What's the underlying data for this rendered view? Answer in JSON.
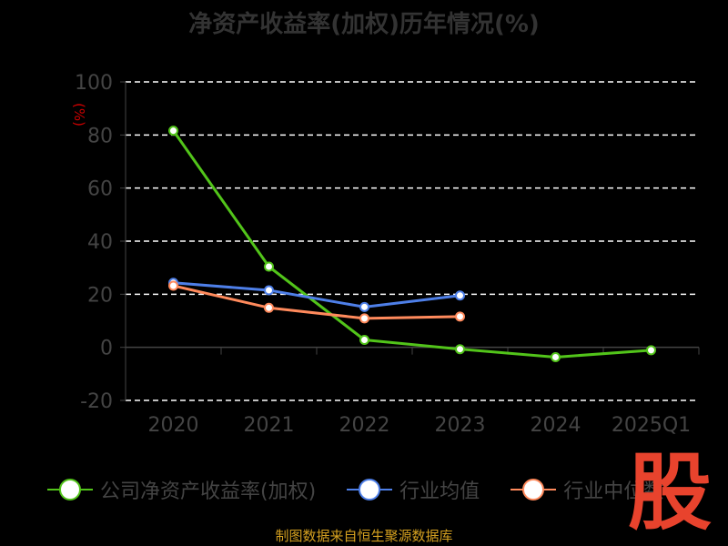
{
  "title": "净资产收益率(加权)历年情况(%)",
  "source": "制图数据来自恒生聚源数据库",
  "logo_text": "股",
  "colors": {
    "background": "#000000",
    "axis": "#444444",
    "grid": "#ffffff",
    "company": "#52c41a",
    "industry_avg": "#4e7fe8",
    "industry_median": "#ff8a5c",
    "unit": "#cc0000"
  },
  "chart_data": {
    "type": "line",
    "title": "净资产收益率(加权)历年情况(%)",
    "ylabel": "(%)",
    "xlabel": "",
    "categories": [
      "2020",
      "2021",
      "2022",
      "2023",
      "2024",
      "2025Q1"
    ],
    "yticks": [
      100,
      80,
      60,
      40,
      20,
      0,
      -20
    ],
    "ylim": [
      -20,
      100
    ],
    "grid": true,
    "legend_position": "bottom",
    "series": [
      {
        "name": "公司净资产收益率(加权)",
        "color": "#52c41a",
        "values": [
          81.6,
          30.4,
          2.8,
          -0.7,
          -3.7,
          -1.1
        ]
      },
      {
        "name": "行业均值",
        "color": "#4e7fe8",
        "values": [
          24.3,
          21.5,
          15.2,
          19.5,
          null,
          null
        ]
      },
      {
        "name": "行业中位数",
        "color": "#ff8a5c",
        "values": [
          23.2,
          14.9,
          10.9,
          11.6,
          null,
          null
        ]
      }
    ]
  }
}
